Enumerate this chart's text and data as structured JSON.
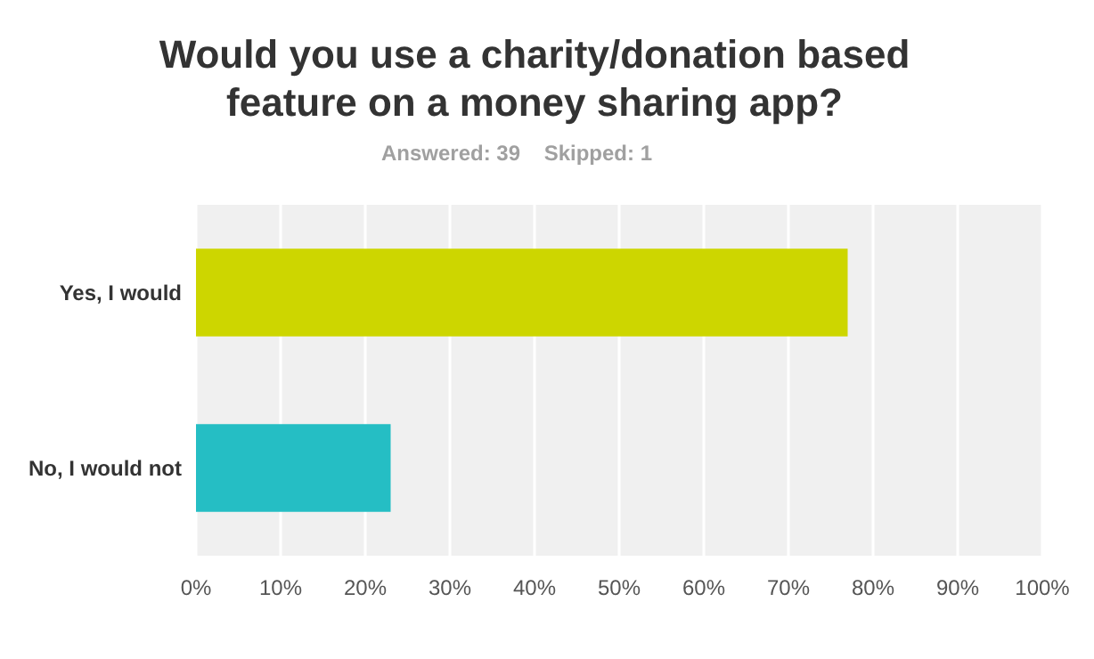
{
  "chart_data": {
    "type": "bar",
    "orientation": "horizontal",
    "title": "Would you use a charity/donation based\nfeature on a money sharing app?",
    "subtitle": "Answered: 39    Skipped: 1",
    "categories": [
      "Yes, I would",
      "No, I would not"
    ],
    "values": [
      77,
      23
    ],
    "colors": [
      "#cdd600",
      "#25bec4"
    ],
    "xlim": [
      0,
      100
    ],
    "xticks": [
      {
        "value": 0,
        "label": "0%"
      },
      {
        "value": 10,
        "label": "10%"
      },
      {
        "value": 20,
        "label": "20%"
      },
      {
        "value": 30,
        "label": "30%"
      },
      {
        "value": 40,
        "label": "40%"
      },
      {
        "value": 50,
        "label": "50%"
      },
      {
        "value": 60,
        "label": "60%"
      },
      {
        "value": 70,
        "label": "70%"
      },
      {
        "value": 80,
        "label": "80%"
      },
      {
        "value": 90,
        "label": "90%"
      },
      {
        "value": 100,
        "label": "100%"
      }
    ],
    "grid": "x"
  }
}
